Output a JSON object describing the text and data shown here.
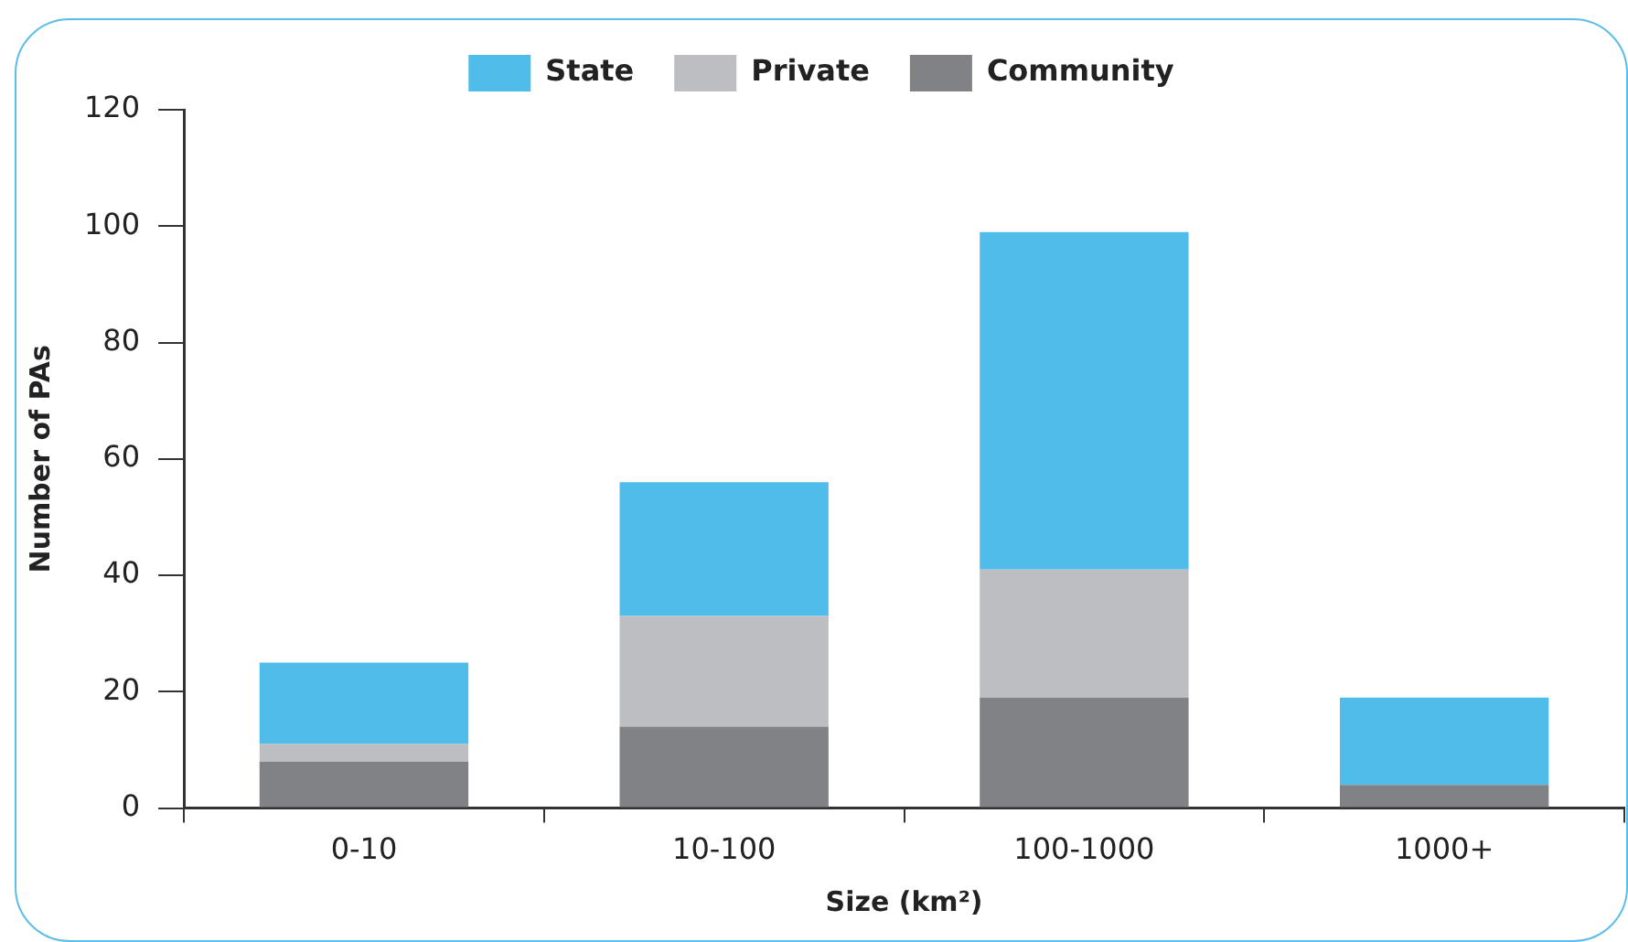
{
  "chart_data": {
    "type": "bar",
    "stacked": true,
    "xlabel": "Size (km²)",
    "ylabel": "Number of PAs",
    "categories": [
      "0-10",
      "10-100",
      "100-1000",
      "1000+"
    ],
    "series": [
      {
        "name": "Community",
        "color": "#818285",
        "values": [
          8,
          14,
          19,
          4
        ]
      },
      {
        "name": "Private",
        "color": "#bdbec2",
        "values": [
          3,
          19,
          22,
          0
        ]
      },
      {
        "name": "State",
        "color": "#50bcea",
        "values": [
          14,
          23,
          58,
          15
        ]
      }
    ],
    "ylim": [
      0,
      120
    ],
    "yticks": [
      0,
      20,
      40,
      60,
      80,
      100,
      120
    ],
    "grid": false,
    "legend": "top"
  }
}
